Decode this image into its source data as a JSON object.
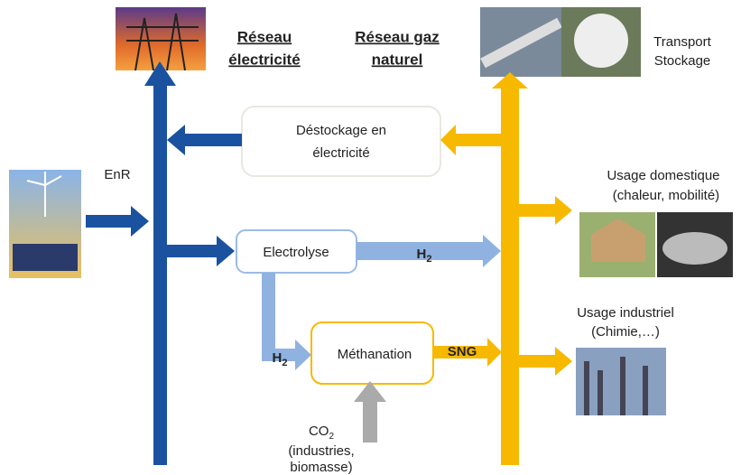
{
  "headers": {
    "electricity": [
      "Réseau",
      "électricité"
    ],
    "gas": [
      "Réseau gaz",
      "naturel"
    ]
  },
  "transport": [
    "Transport",
    "Stockage"
  ],
  "enr": "EnR",
  "destockage": [
    "Déstockage en",
    "électricité"
  ],
  "electrolyse": {
    "label": "Electrolyse",
    "product": {
      "main": "H",
      "sub": "2"
    }
  },
  "methanation": {
    "label": "Méthanation",
    "input": {
      "main": "H",
      "sub": "2"
    },
    "product": "SNG"
  },
  "co2": {
    "main": "CO",
    "sub": "2",
    "lines": [
      "(industries,",
      "biomasse)"
    ]
  },
  "usage_domestique": [
    "Usage domestique",
    "(chaleur, mobilité)"
  ],
  "usage_industriel": [
    "Usage industriel",
    "(Chimie,…)"
  ]
}
